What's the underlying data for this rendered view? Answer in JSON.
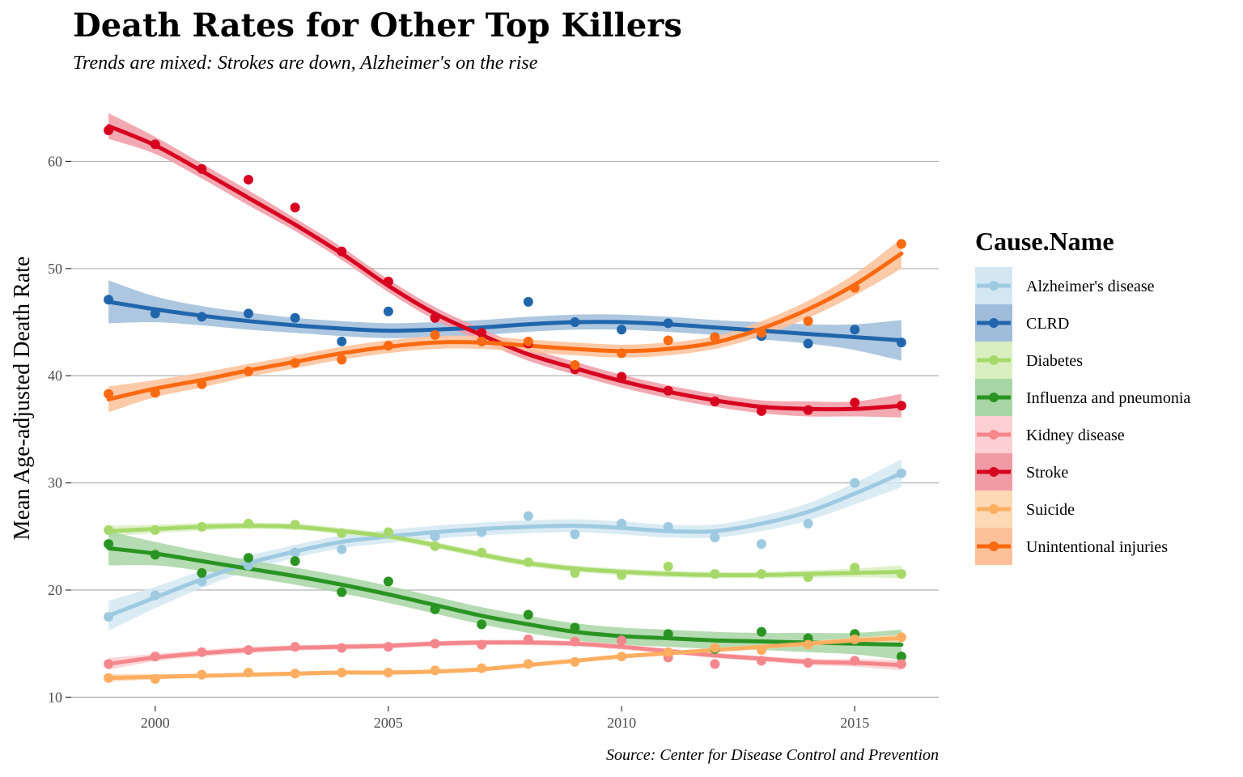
{
  "chart_data": {
    "type": "line",
    "title": "Death Rates for Other Top Killers",
    "subtitle": "Trends are mixed: Strokes are down, Alzheimer's on the rise",
    "caption": "Source: Center for Disease Control and Prevention",
    "xlabel": "",
    "ylabel": "Mean Age-adjusted Death Rate",
    "xlim": [
      1998.2,
      2016.8
    ],
    "ylim": [
      9.2,
      66
    ],
    "x_ticks": [
      2000,
      2005,
      2010,
      2015
    ],
    "y_ticks": [
      10,
      20,
      30,
      40,
      50,
      60
    ],
    "grid": "horizontal major lines only",
    "legend_title": "Cause.Name",
    "legend_position": "right",
    "x": [
      1999,
      2000,
      2001,
      2002,
      2003,
      2004,
      2005,
      2006,
      2007,
      2008,
      2009,
      2010,
      2011,
      2012,
      2013,
      2014,
      2015,
      2016
    ],
    "series": [
      {
        "name": "Alzheimer's disease",
        "color": "#9ecae1",
        "band_color": "#d3e7f2",
        "values": [
          17.5,
          19.5,
          20.8,
          22.3,
          23.5,
          23.8,
          25.3,
          25.0,
          25.4,
          26.9,
          25.2,
          26.2,
          25.9,
          24.9,
          24.3,
          26.2,
          30.0,
          30.9
        ],
        "smooth": [
          17.6,
          19.3,
          21.0,
          22.5,
          23.6,
          24.5,
          25.0,
          25.4,
          25.7,
          25.9,
          26.0,
          25.8,
          25.5,
          25.5,
          26.2,
          27.3,
          29.0,
          30.9
        ],
        "band": [
          1.4,
          1.0,
          0.8,
          0.7,
          0.6,
          0.6,
          0.6,
          0.6,
          0.6,
          0.6,
          0.6,
          0.6,
          0.6,
          0.6,
          0.7,
          0.8,
          1.0,
          1.3
        ]
      },
      {
        "name": "CLRD",
        "color": "#2166ac",
        "band_color": "#9fbddb",
        "values": [
          47.1,
          45.8,
          45.5,
          45.8,
          45.4,
          43.2,
          46.0,
          45.4,
          43.2,
          46.9,
          45.0,
          44.3,
          44.9,
          43.6,
          43.7,
          43.0,
          44.3,
          43.1
        ],
        "smooth": [
          46.9,
          46.2,
          45.6,
          45.1,
          44.7,
          44.4,
          44.2,
          44.3,
          44.5,
          44.8,
          45.0,
          45.0,
          44.8,
          44.5,
          44.2,
          43.9,
          43.6,
          43.3
        ],
        "band": [
          2.0,
          1.2,
          0.9,
          0.8,
          0.7,
          0.7,
          0.7,
          0.7,
          0.7,
          0.7,
          0.7,
          0.7,
          0.7,
          0.7,
          0.8,
          0.9,
          1.2,
          1.9
        ]
      },
      {
        "name": "Diabetes",
        "color": "#a6d96a",
        "band_color": "#d9efc2",
        "values": [
          25.6,
          25.6,
          25.9,
          26.2,
          26.1,
          25.3,
          25.4,
          24.1,
          23.5,
          22.6,
          21.6,
          21.4,
          22.2,
          21.5,
          21.5,
          21.2,
          22.1,
          21.5
        ],
        "smooth": [
          25.5,
          25.7,
          25.9,
          26.0,
          25.9,
          25.5,
          25.0,
          24.2,
          23.3,
          22.5,
          22.0,
          21.7,
          21.5,
          21.4,
          21.4,
          21.5,
          21.6,
          21.7
        ],
        "band": [
          0.5,
          0.4,
          0.35,
          0.3,
          0.3,
          0.3,
          0.3,
          0.3,
          0.3,
          0.3,
          0.3,
          0.3,
          0.3,
          0.3,
          0.3,
          0.35,
          0.4,
          0.6
        ]
      },
      {
        "name": "Influenza and pneumonia",
        "color": "#2a9423",
        "band_color": "#a8d5a5",
        "values": [
          24.3,
          23.3,
          21.6,
          23.0,
          22.7,
          19.8,
          20.8,
          18.2,
          16.8,
          17.7,
          16.5,
          15.3,
          15.9,
          14.5,
          16.1,
          15.5,
          15.9,
          13.8
        ],
        "smooth": [
          23.9,
          23.4,
          22.7,
          22.0,
          21.3,
          20.5,
          19.6,
          18.6,
          17.6,
          16.8,
          16.1,
          15.7,
          15.5,
          15.3,
          15.2,
          15.1,
          15.0,
          14.9
        ],
        "band": [
          1.6,
          1.1,
          0.9,
          0.8,
          0.8,
          0.8,
          0.8,
          0.8,
          0.8,
          0.8,
          0.8,
          0.8,
          0.8,
          0.8,
          0.8,
          0.9,
          1.0,
          1.4
        ]
      },
      {
        "name": "Kidney disease",
        "color": "#f4878c",
        "band_color": "#fcd0d2",
        "values": [
          13.1,
          13.8,
          14.2,
          14.4,
          14.7,
          14.6,
          14.7,
          15.0,
          14.9,
          15.4,
          15.2,
          15.3,
          13.7,
          13.1,
          13.4,
          13.2,
          13.4,
          13.1
        ],
        "smooth": [
          13.1,
          13.7,
          14.1,
          14.4,
          14.6,
          14.7,
          14.8,
          15.0,
          15.1,
          15.1,
          15.0,
          14.7,
          14.3,
          13.9,
          13.6,
          13.3,
          13.2,
          13.0
        ],
        "band": [
          0.55,
          0.35,
          0.3,
          0.3,
          0.25,
          0.25,
          0.25,
          0.25,
          0.25,
          0.25,
          0.25,
          0.25,
          0.25,
          0.25,
          0.25,
          0.3,
          0.35,
          0.5
        ]
      },
      {
        "name": "Stroke",
        "color": "#d7001f",
        "band_color": "#f09aa4",
        "values": [
          62.9,
          61.6,
          59.3,
          58.3,
          55.7,
          51.6,
          48.8,
          45.4,
          44.0,
          43.0,
          40.6,
          39.9,
          38.6,
          37.6,
          36.7,
          36.8,
          37.5,
          37.2
        ],
        "smooth": [
          63.3,
          61.5,
          59.1,
          56.6,
          54.1,
          51.4,
          48.4,
          45.8,
          43.8,
          42.0,
          40.7,
          39.5,
          38.5,
          37.7,
          37.1,
          36.9,
          36.9,
          37.2
        ],
        "band": [
          1.2,
          0.8,
          0.7,
          0.7,
          0.6,
          0.6,
          0.6,
          0.6,
          0.6,
          0.6,
          0.6,
          0.6,
          0.6,
          0.6,
          0.6,
          0.7,
          0.7,
          1.1
        ]
      },
      {
        "name": "Suicide",
        "color": "#fdae61",
        "band_color": "#fdd9b5",
        "values": [
          11.8,
          11.7,
          12.1,
          12.3,
          12.2,
          12.3,
          12.3,
          12.5,
          12.7,
          13.1,
          13.3,
          13.8,
          14.2,
          14.6,
          14.4,
          14.9,
          15.4,
          15.6
        ],
        "smooth": [
          11.8,
          11.9,
          12.0,
          12.1,
          12.2,
          12.3,
          12.3,
          12.4,
          12.6,
          13.0,
          13.4,
          13.8,
          14.1,
          14.4,
          14.7,
          15.0,
          15.3,
          15.5
        ],
        "band": [
          0.35,
          0.25,
          0.2,
          0.2,
          0.2,
          0.2,
          0.2,
          0.2,
          0.2,
          0.2,
          0.2,
          0.2,
          0.2,
          0.2,
          0.2,
          0.22,
          0.25,
          0.35
        ]
      },
      {
        "name": "Unintentional injuries",
        "color": "#fb6a10",
        "band_color": "#fdc19a",
        "values": [
          38.3,
          38.4,
          39.2,
          40.4,
          41.2,
          41.5,
          42.8,
          43.8,
          43.2,
          43.2,
          41.0,
          42.1,
          43.3,
          43.6,
          44.0,
          45.1,
          48.2,
          52.3
        ],
        "smooth": [
          37.8,
          38.8,
          39.6,
          40.5,
          41.3,
          42.1,
          42.7,
          43.1,
          43.1,
          42.8,
          42.5,
          42.3,
          42.5,
          43.1,
          44.4,
          46.2,
          48.5,
          51.4
        ],
        "band": [
          1.2,
          0.8,
          0.7,
          0.6,
          0.6,
          0.6,
          0.6,
          0.6,
          0.6,
          0.6,
          0.6,
          0.6,
          0.6,
          0.6,
          0.7,
          0.8,
          1.0,
          1.4
        ]
      }
    ]
  }
}
